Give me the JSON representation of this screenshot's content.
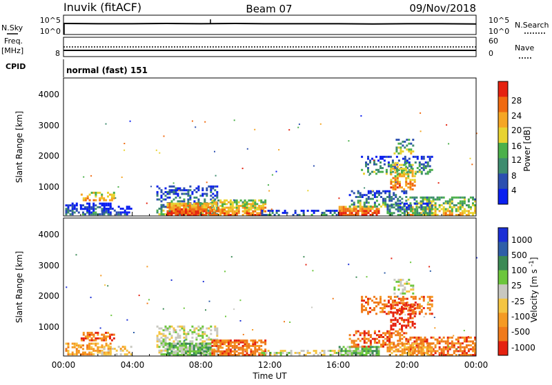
{
  "chart_data": [
    {
      "type": "line",
      "title": "Inuvik (fitACF)",
      "beam": "Beam 07",
      "date": "09/Nov/2018",
      "left_label": "N.Sky",
      "left_ticks": [
        "10^5",
        "10^0"
      ],
      "right_label": "N.Search",
      "right_ticks": [
        "10^5",
        "10^0"
      ],
      "series": [
        {
          "values": [
            3.2,
            3.1,
            3.1,
            3.2,
            3.1,
            3.2,
            3.1,
            3.1,
            3.1,
            3.0,
            3.1,
            3.1,
            3.0
          ]
        }
      ]
    },
    {
      "type": "line",
      "left_label": "Freq.",
      "left_unit": "[MHz]",
      "left_ticks": [
        "8"
      ],
      "right_label": "Nave",
      "right_ticks": [
        "60",
        "0"
      ],
      "cpid_label": "CPID",
      "cpid_text": "normal (fast) 151"
    },
    {
      "type": "heatmap",
      "ylabel": "Slant Range [km]",
      "yticks": [
        1000,
        2000,
        3000,
        4000
      ],
      "ylim": [
        180,
        4600
      ],
      "colorbar_label": "Power [dB]",
      "colorbar_ticks": [
        "4",
        "8",
        "12",
        "16",
        "20",
        "24",
        "28"
      ],
      "palette": [
        "#0a1ff0",
        "#2c4fb0",
        "#3e8c6f",
        "#4bb04a",
        "#e8d330",
        "#f5a623",
        "#f06a10",
        "#e52210"
      ]
    },
    {
      "type": "heatmap",
      "ylabel": "Slant Range [km]",
      "yticks": [
        1000,
        2000,
        3000,
        4000
      ],
      "ylim": [
        180,
        4600
      ],
      "colorbar_label": "Velocity [m s^-1]",
      "colorbar_ticks": [
        "1000",
        "500",
        "100",
        "25",
        "-25",
        "-100",
        "-500",
        "-1000"
      ],
      "palette": [
        "#1b2fd6",
        "#2e5ea8",
        "#3b8a55",
        "#6cc63c",
        "#c8c8c0",
        "#f5c542",
        "#f59a23",
        "#f07a1a",
        "#e52210"
      ]
    }
  ],
  "xaxis": {
    "label": "Time UT",
    "ticks": [
      "00:00",
      "04:00",
      "08:00",
      "12:00",
      "16:00",
      "20:00",
      "00:00"
    ]
  }
}
